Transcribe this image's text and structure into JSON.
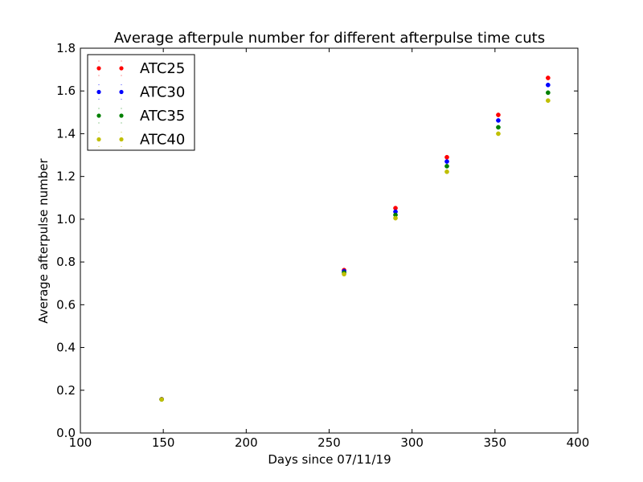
{
  "chart_data": {
    "type": "scatter",
    "title": "Average afterpule number for different afterpulse time cuts",
    "xlabel": "Days since 07/11/19",
    "ylabel": "Average afterpulse number",
    "xlim": [
      100,
      400
    ],
    "ylim": [
      0.0,
      1.8
    ],
    "xticks": [
      "100",
      "150",
      "200",
      "250",
      "300",
      "350",
      "400"
    ],
    "yticks": [
      "0.0",
      "0.2",
      "0.4",
      "0.6",
      "0.8",
      "1.0",
      "1.2",
      "1.4",
      "1.6",
      "1.8"
    ],
    "grid": false,
    "legend_position": "top-left",
    "x": [
      149,
      259,
      290,
      321,
      352,
      382
    ],
    "series": [
      {
        "name": "ATC25",
        "color": "#ff0000",
        "values": [
          0.158,
          0.762,
          1.052,
          1.29,
          1.488,
          1.661
        ]
      },
      {
        "name": "ATC30",
        "color": "#0000ff",
        "values": [
          0.158,
          0.757,
          1.035,
          1.27,
          1.462,
          1.628
        ]
      },
      {
        "name": "ATC35",
        "color": "#008000",
        "values": [
          0.157,
          0.75,
          1.02,
          1.248,
          1.43,
          1.592
        ]
      },
      {
        "name": "ATC40",
        "color": "#c0bf00",
        "values": [
          0.157,
          0.743,
          1.005,
          1.222,
          1.4,
          1.555
        ]
      }
    ]
  }
}
